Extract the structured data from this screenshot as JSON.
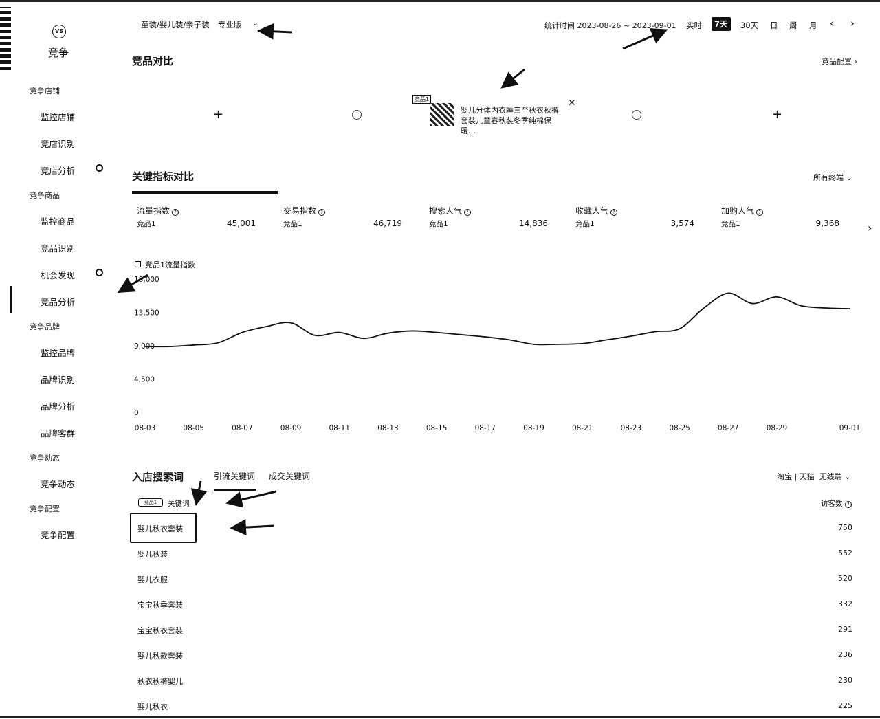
{
  "sidebar": {
    "title": "竞争",
    "vs_label": "VS",
    "sections": [
      {
        "label": "竞争店铺",
        "items": [
          "监控店铺",
          "竞店识别",
          "竞店分析"
        ]
      },
      {
        "label": "竞争商品",
        "items": [
          "监控商品",
          "竞品识别",
          "机会发现",
          "竞品分析"
        ]
      },
      {
        "label": "竞争品牌",
        "items": [
          "监控品牌",
          "品牌识别",
          "品牌分析",
          "品牌客群"
        ]
      },
      {
        "label": "竞争动态",
        "items": [
          "竞争动态"
        ]
      },
      {
        "label": "竞争配置",
        "items": [
          "竞争配置"
        ]
      }
    ]
  },
  "header": {
    "category": "童装/婴儿装/亲子装",
    "edition": "专业版",
    "stat_time": "统计时间 2023-08-26 ~ 2023-09-01",
    "tabs": [
      "实时",
      "7天",
      "30天",
      "日",
      "周",
      "月"
    ],
    "selected_tab": "7天",
    "prev": "‹",
    "next": "›"
  },
  "compare": {
    "title": "竞品对比",
    "config_link": "竞品配置 ›",
    "product_tag": "竞品1",
    "product_name": "婴儿分体内衣睡三至秋衣秋裤套装儿童春秋装冬季纯棉保暖…"
  },
  "metrics": {
    "title": "关键指标对比",
    "filter": "所有终端",
    "items": [
      {
        "label": "流量指数",
        "sub": "竞品1",
        "value": "45,001"
      },
      {
        "label": "交易指数",
        "sub": "竞品1",
        "value": "46,719"
      },
      {
        "label": "搜索人气",
        "sub": "竞品1",
        "value": "14,836"
      },
      {
        "label": "收藏人气",
        "sub": "竞品1",
        "value": "3,574"
      },
      {
        "label": "加购人气",
        "sub": "竞品1",
        "value": "9,368"
      }
    ]
  },
  "chart_data": {
    "type": "line",
    "legend": "竞品1流量指数",
    "x": [
      "08-03",
      "08-04",
      "08-05",
      "08-06",
      "08-07",
      "08-08",
      "08-09",
      "08-10",
      "08-11",
      "08-12",
      "08-13",
      "08-14",
      "08-15",
      "08-16",
      "08-17",
      "08-18",
      "08-19",
      "08-20",
      "08-21",
      "08-22",
      "08-23",
      "08-24",
      "08-25",
      "08-26",
      "08-27",
      "08-28",
      "08-29",
      "08-30",
      "08-31",
      "09-01"
    ],
    "xticks": [
      "08-03",
      "08-05",
      "08-07",
      "08-09",
      "08-11",
      "08-13",
      "08-15",
      "08-17",
      "08-19",
      "08-21",
      "08-23",
      "08-25",
      "08-27",
      "08-29",
      "09-01"
    ],
    "yticks": [
      "0",
      "4,500",
      "9,000",
      "13,500",
      "18,000"
    ],
    "series": [
      {
        "name": "竞品1流量指数",
        "values": [
          8900,
          8900,
          9100,
          9400,
          10800,
          11600,
          12100,
          10400,
          10800,
          10000,
          10700,
          11000,
          10800,
          10500,
          10200,
          9800,
          9200,
          9200,
          9300,
          9800,
          10300,
          10900,
          11300,
          14100,
          16100,
          14700,
          15600,
          14400,
          14100,
          14000
        ]
      }
    ],
    "ylim": [
      0,
      18000
    ]
  },
  "keywords": {
    "title": "入店搜索词",
    "tabs": [
      "引流关键词",
      "成交关键词"
    ],
    "source": "淘宝 | 天猫",
    "terminal": "无线端",
    "badge": "竞品1",
    "col_keyword": "关键词",
    "col_visitors": "访客数",
    "rows": [
      {
        "kw": "婴儿秋衣套装",
        "v": "750"
      },
      {
        "kw": "婴儿秋装",
        "v": "552"
      },
      {
        "kw": "婴儿衣服",
        "v": "520"
      },
      {
        "kw": "宝宝秋季套装",
        "v": "332"
      },
      {
        "kw": "宝宝秋衣套装",
        "v": "291"
      },
      {
        "kw": "婴儿秋款套装",
        "v": "236"
      },
      {
        "kw": "秋衣秋裤婴儿",
        "v": "230"
      },
      {
        "kw": "婴儿秋衣",
        "v": "225"
      }
    ]
  }
}
